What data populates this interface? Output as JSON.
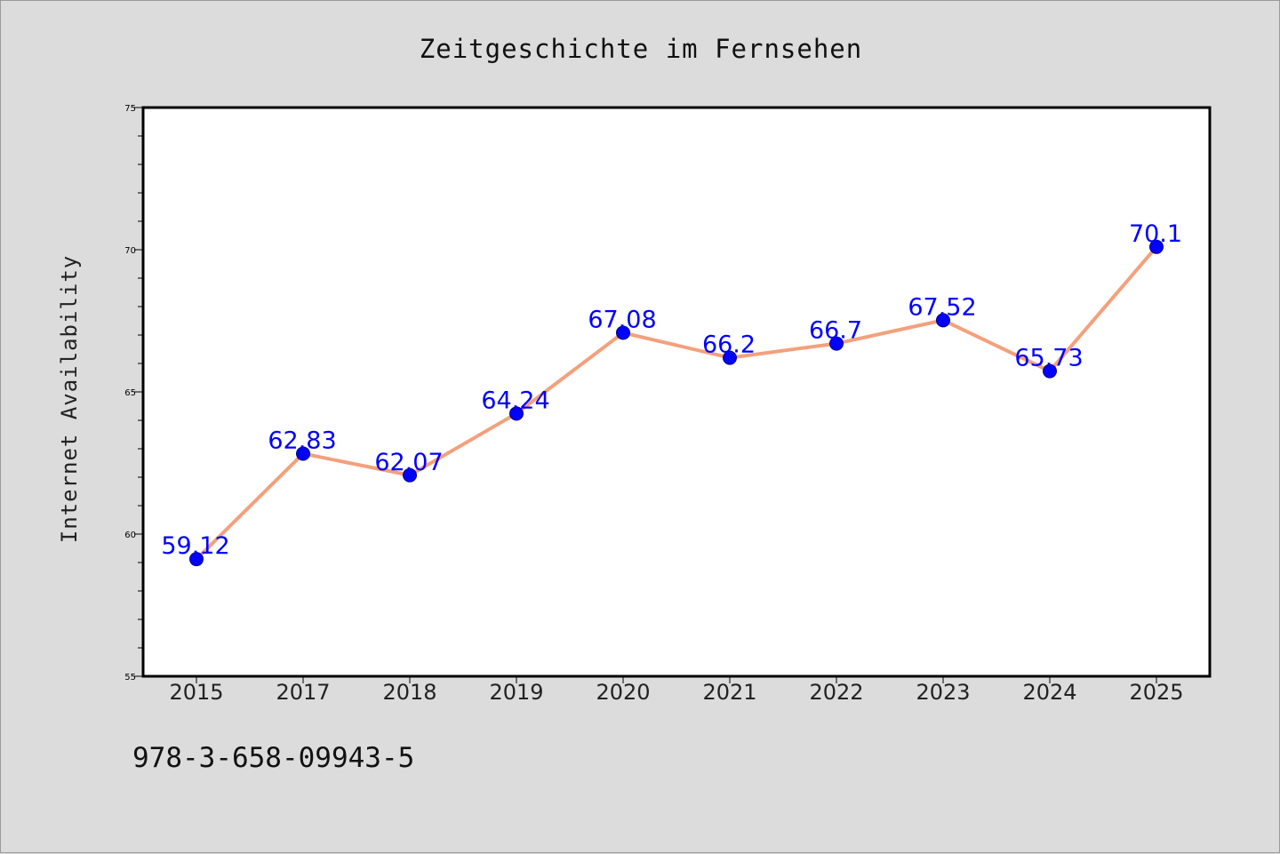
{
  "chart_data": {
    "type": "line",
    "title": "Zeitgeschichte im Fernsehen",
    "xlabel": "",
    "ylabel": "Internet Availability",
    "categories": [
      "2015",
      "2017",
      "2018",
      "2019",
      "2020",
      "2021",
      "2022",
      "2023",
      "2024",
      "2025"
    ],
    "series": [
      {
        "values": [
          59.12,
          62.83,
          62.07,
          64.24,
          67.08,
          66.2,
          66.7,
          67.52,
          65.73,
          70.1
        ],
        "data_labels": [
          "59.12",
          "62.83",
          "62.07",
          "64.24",
          "67.08",
          "66.2",
          "66.7",
          "67.52",
          "65.73",
          "70.1"
        ],
        "line_color": "#f4a07c",
        "marker_color": "#0000ff"
      }
    ],
    "ylim": [
      55,
      75
    ],
    "yticks": [
      "55",
      "60",
      "65",
      "70",
      "75"
    ],
    "grid": false,
    "legend": "none"
  },
  "footnote": "978-3-658-09943-5",
  "colors": {
    "background": "#dcdcdc",
    "plot_background": "#ffffff",
    "line": "#f4a07c",
    "marker": "#0000ff",
    "data_label": "#0000ff"
  }
}
